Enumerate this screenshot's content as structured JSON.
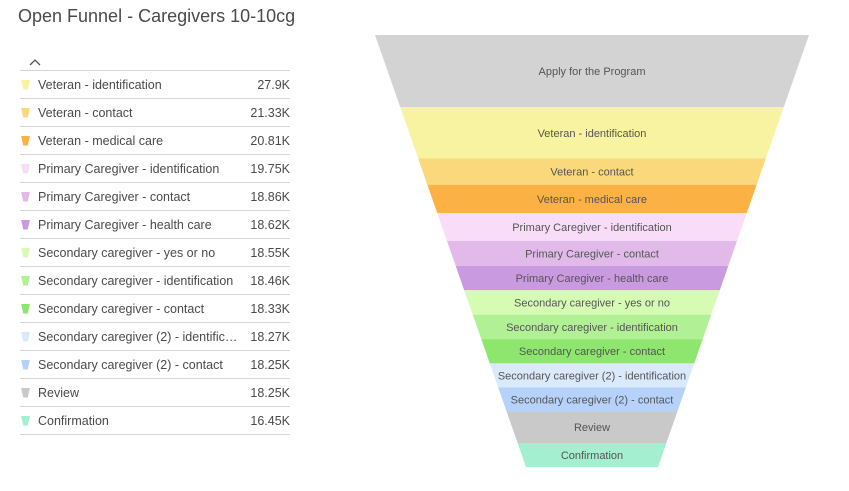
{
  "title": "Open Funnel - Caregivers 10-10cg",
  "sort_icon": "chevron-up-icon",
  "chart_data": {
    "type": "funnel",
    "title": "Open Funnel - Caregivers 10-10cg",
    "top_stage": {
      "label": "Apply for the Program",
      "color": "#d3d3d3"
    },
    "stages": [
      {
        "label": "Veteran - identification",
        "value": 27900,
        "display": "27.9K",
        "color": "#f7f3a1"
      },
      {
        "label": "Veteran - contact",
        "value": 21330,
        "display": "21.33K",
        "color": "#fad87c"
      },
      {
        "label": "Veteran - medical care",
        "value": 20810,
        "display": "20.81K",
        "color": "#fbb144"
      },
      {
        "label": "Primary Caregiver - identification",
        "value": 19750,
        "display": "19.75K",
        "color": "#f8dcf8"
      },
      {
        "label": "Primary Caregiver - contact",
        "value": 18860,
        "display": "18.86K",
        "color": "#e1baea"
      },
      {
        "label": "Primary Caregiver - health care",
        "value": 18620,
        "display": "18.62K",
        "color": "#c99ae0"
      },
      {
        "label": "Secondary caregiver - yes or no",
        "value": 18550,
        "display": "18.55K",
        "color": "#d6fcb4"
      },
      {
        "label": "Secondary caregiver - identification",
        "value": 18460,
        "display": "18.46K",
        "color": "#b1f094"
      },
      {
        "label": "Secondary caregiver - contact",
        "value": 18330,
        "display": "18.33K",
        "color": "#8ee66e"
      },
      {
        "label": "Secondary caregiver (2) - identification",
        "value": 18270,
        "display": "18.27K",
        "color": "#dae9fb"
      },
      {
        "label": "Secondary caregiver (2) - contact",
        "value": 18250,
        "display": "18.25K",
        "color": "#b6d2fa"
      },
      {
        "label": "Review",
        "value": 18250,
        "display": "18.25K",
        "color": "#c9c9c9"
      },
      {
        "label": "Confirmation",
        "value": 16450,
        "display": "16.45K",
        "color": "#a3efcf"
      }
    ]
  }
}
